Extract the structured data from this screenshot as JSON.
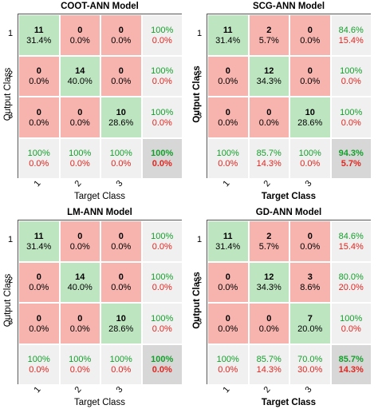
{
  "chart_data": [
    {
      "type": "table",
      "title": "COOT-ANN Model",
      "xlabel": "Target Class",
      "ylabel": "Output Class",
      "label_bold": false,
      "classes": [
        "1",
        "2",
        "3"
      ],
      "matrix": [
        [
          {
            "n": "11",
            "p": "31.4%"
          },
          {
            "n": "0",
            "p": "0.0%"
          },
          {
            "n": "0",
            "p": "0.0%"
          }
        ],
        [
          {
            "n": "0",
            "p": "0.0%"
          },
          {
            "n": "14",
            "p": "40.0%"
          },
          {
            "n": "0",
            "p": "0.0%"
          }
        ],
        [
          {
            "n": "0",
            "p": "0.0%"
          },
          {
            "n": "0",
            "p": "0.0%"
          },
          {
            "n": "10",
            "p": "28.6%"
          }
        ]
      ],
      "row_summary": [
        [
          "100%",
          "0.0%"
        ],
        [
          "100%",
          "0.0%"
        ],
        [
          "100%",
          "0.0%"
        ]
      ],
      "col_summary": [
        [
          "100%",
          "0.0%"
        ],
        [
          "100%",
          "0.0%"
        ],
        [
          "100%",
          "0.0%"
        ]
      ],
      "overall": [
        "100%",
        "0.0%"
      ]
    },
    {
      "type": "table",
      "title": "SCG-ANN Model",
      "xlabel": "Target Class",
      "ylabel": "Output Class",
      "label_bold": true,
      "classes": [
        "1",
        "2",
        "3"
      ],
      "matrix": [
        [
          {
            "n": "11",
            "p": "31.4%"
          },
          {
            "n": "2",
            "p": "5.7%"
          },
          {
            "n": "0",
            "p": "0.0%"
          }
        ],
        [
          {
            "n": "0",
            "p": "0.0%"
          },
          {
            "n": "12",
            "p": "34.3%"
          },
          {
            "n": "0",
            "p": "0.0%"
          }
        ],
        [
          {
            "n": "0",
            "p": "0.0%"
          },
          {
            "n": "0",
            "p": "0.0%"
          },
          {
            "n": "10",
            "p": "28.6%"
          }
        ]
      ],
      "row_summary": [
        [
          "84.6%",
          "15.4%"
        ],
        [
          "100%",
          "0.0%"
        ],
        [
          "100%",
          "0.0%"
        ]
      ],
      "col_summary": [
        [
          "100%",
          "0.0%"
        ],
        [
          "85.7%",
          "14.3%"
        ],
        [
          "100%",
          "0.0%"
        ]
      ],
      "overall": [
        "94.3%",
        "5.7%"
      ]
    },
    {
      "type": "table",
      "title": "LM-ANN Model",
      "xlabel": "Target Class",
      "ylabel": "Output Class",
      "label_bold": false,
      "classes": [
        "1",
        "2",
        "3"
      ],
      "matrix": [
        [
          {
            "n": "11",
            "p": "31.4%"
          },
          {
            "n": "0",
            "p": "0.0%"
          },
          {
            "n": "0",
            "p": "0.0%"
          }
        ],
        [
          {
            "n": "0",
            "p": "0.0%"
          },
          {
            "n": "14",
            "p": "40.0%"
          },
          {
            "n": "0",
            "p": "0.0%"
          }
        ],
        [
          {
            "n": "0",
            "p": "0.0%"
          },
          {
            "n": "0",
            "p": "0.0%"
          },
          {
            "n": "10",
            "p": "28.6%"
          }
        ]
      ],
      "row_summary": [
        [
          "100%",
          "0.0%"
        ],
        [
          "100%",
          "0.0%"
        ],
        [
          "100%",
          "0.0%"
        ]
      ],
      "col_summary": [
        [
          "100%",
          "0.0%"
        ],
        [
          "100%",
          "0.0%"
        ],
        [
          "100%",
          "0.0%"
        ]
      ],
      "overall": [
        "100%",
        "0.0%"
      ]
    },
    {
      "type": "table",
      "title": "GD-ANN Model",
      "xlabel": "Target Class",
      "ylabel": "Output Class",
      "label_bold": true,
      "classes": [
        "1",
        "2",
        "3"
      ],
      "matrix": [
        [
          {
            "n": "11",
            "p": "31.4%"
          },
          {
            "n": "2",
            "p": "5.7%"
          },
          {
            "n": "0",
            "p": "0.0%"
          }
        ],
        [
          {
            "n": "0",
            "p": "0.0%"
          },
          {
            "n": "12",
            "p": "34.3%"
          },
          {
            "n": "3",
            "p": "8.6%"
          }
        ],
        [
          {
            "n": "0",
            "p": "0.0%"
          },
          {
            "n": "0",
            "p": "0.0%"
          },
          {
            "n": "7",
            "p": "20.0%"
          }
        ]
      ],
      "row_summary": [
        [
          "84.6%",
          "15.4%"
        ],
        [
          "80.0%",
          "20.0%"
        ],
        [
          "100%",
          "0.0%"
        ]
      ],
      "col_summary": [
        [
          "100%",
          "0.0%"
        ],
        [
          "85.7%",
          "14.3%"
        ],
        [
          "70.0%",
          "30.0%"
        ]
      ],
      "overall": [
        "85.7%",
        "14.3%"
      ]
    }
  ],
  "colors": {
    "correct_cell": "#bde5c0",
    "error_cell": "#f7b3ad",
    "summary_cell": "#f0f0f0",
    "overall_cell": "#d7d7d7",
    "accuracy_text": "#13a02a",
    "error_text": "#e3251f"
  }
}
